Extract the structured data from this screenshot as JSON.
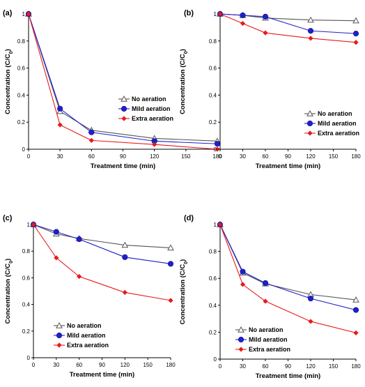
{
  "chart_data": [
    {
      "type": "line",
      "panel": "(a)",
      "xlabel": "Treatment time (min)",
      "ylabel": "Concentration (C/C",
      "ylabel_sub": "0",
      "ylabel_end": ")",
      "x": [
        0,
        30,
        60,
        120,
        180
      ],
      "xticks": [
        "0",
        "30",
        "60",
        "90",
        "120",
        "150",
        "180"
      ],
      "yticks": [
        "0",
        "0.2",
        "0.4",
        "0.6",
        "0.8",
        "1"
      ],
      "xlim": [
        0,
        180
      ],
      "ylim": [
        0,
        1
      ],
      "legend_position": "middle-right",
      "series": [
        {
          "name": "No aeration",
          "values": [
            1.0,
            0.28,
            0.14,
            0.08,
            0.06
          ],
          "color": "#555555",
          "marker": "triangle-open"
        },
        {
          "name": "Mild aeration",
          "values": [
            1.0,
            0.3,
            0.125,
            0.06,
            0.04
          ],
          "color": "#1f1fcc",
          "marker": "circle"
        },
        {
          "name": "Extra aeration",
          "values": [
            1.0,
            0.18,
            0.065,
            0.035,
            0.0
          ],
          "color": "#e8191c",
          "marker": "diamond"
        }
      ]
    },
    {
      "type": "line",
      "panel": "(b)",
      "xlabel": "Treatment time (min)",
      "ylabel": "Concentration (C/C",
      "ylabel_sub": "0",
      "ylabel_end": ")",
      "x": [
        0,
        30,
        60,
        120,
        180
      ],
      "xticks": [
        "0",
        "30",
        "60",
        "90",
        "120",
        "150",
        "180"
      ],
      "yticks": [
        "0",
        "0.2",
        "0.4",
        "0.6",
        "0.8",
        "1"
      ],
      "xlim": [
        0,
        180
      ],
      "ylim": [
        0,
        1
      ],
      "legend_position": "lower-middle",
      "series": [
        {
          "name": "No aeration",
          "values": [
            1.0,
            0.99,
            0.97,
            0.955,
            0.95
          ],
          "color": "#555555",
          "marker": "triangle-open"
        },
        {
          "name": "Mild aeration",
          "values": [
            1.0,
            0.99,
            0.98,
            0.875,
            0.855
          ],
          "color": "#1f1fcc",
          "marker": "circle"
        },
        {
          "name": "Extra aeration",
          "values": [
            1.0,
            0.93,
            0.86,
            0.82,
            0.79
          ],
          "color": "#e8191c",
          "marker": "diamond"
        }
      ]
    },
    {
      "type": "line",
      "panel": "(c)",
      "xlabel": "Treatment time (min)",
      "ylabel": "Concentration (C/C",
      "ylabel_sub": "0",
      "ylabel_end": ")",
      "x": [
        0,
        30,
        60,
        120,
        180
      ],
      "xticks": [
        "0",
        "30",
        "60",
        "90",
        "120",
        "150",
        "180"
      ],
      "yticks": [
        "0",
        "0.2",
        "0.4",
        "0.6",
        "0.8",
        "1"
      ],
      "xlim": [
        0,
        180
      ],
      "ylim": [
        0,
        1
      ],
      "legend_position": "lower-left",
      "series": [
        {
          "name": "No aeration",
          "values": [
            1.0,
            0.93,
            0.895,
            0.845,
            0.825
          ],
          "color": "#555555",
          "marker": "triangle-open"
        },
        {
          "name": "Mild aeration",
          "values": [
            1.0,
            0.945,
            0.89,
            0.755,
            0.705
          ],
          "color": "#1f1fcc",
          "marker": "circle"
        },
        {
          "name": "Extra aeration",
          "values": [
            1.0,
            0.75,
            0.61,
            0.49,
            0.43
          ],
          "color": "#e8191c",
          "marker": "diamond"
        }
      ]
    },
    {
      "type": "line",
      "panel": "(d)",
      "xlabel": "Treatment time (min)",
      "ylabel": "Concentration (C/C",
      "ylabel_sub": "0",
      "ylabel_end": ")",
      "x": [
        0,
        30,
        60,
        120,
        180
      ],
      "xticks": [
        "0",
        "30",
        "60",
        "90",
        "120",
        "150",
        "180"
      ],
      "yticks": [
        "0",
        "0.2",
        "0.4",
        "0.6",
        "0.8",
        "1"
      ],
      "xlim": [
        0,
        180
      ],
      "ylim": [
        0,
        1
      ],
      "legend_position": "lower-left",
      "series": [
        {
          "name": "No aeration",
          "values": [
            1.0,
            0.64,
            0.56,
            0.48,
            0.44
          ],
          "color": "#555555",
          "marker": "triangle-open"
        },
        {
          "name": "Mild aeration",
          "values": [
            1.0,
            0.65,
            0.565,
            0.45,
            0.365
          ],
          "color": "#1f1fcc",
          "marker": "circle"
        },
        {
          "name": "Extra aeration",
          "values": [
            1.0,
            0.555,
            0.43,
            0.28,
            0.195
          ],
          "color": "#e8191c",
          "marker": "diamond"
        }
      ]
    }
  ]
}
